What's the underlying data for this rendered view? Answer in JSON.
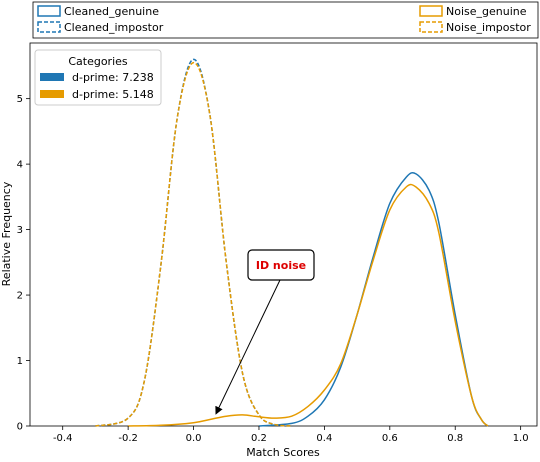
{
  "chart_data": {
    "type": "line",
    "xlabel": "Match Scores",
    "ylabel": "Relative Frequency",
    "xlim": [
      -0.5,
      1.05
    ],
    "ylim": [
      0,
      5.85
    ],
    "xticks": [
      "-0.4",
      "-0.2",
      "0.0",
      "0.2",
      "0.4",
      "0.6",
      "0.8",
      "1.0"
    ],
    "xtick_values": [
      -0.4,
      -0.2,
      0.0,
      0.2,
      0.4,
      0.6,
      0.8,
      1.0
    ],
    "yticks": [
      "0",
      "1",
      "2",
      "3",
      "4",
      "5"
    ],
    "ytick_values": [
      0,
      1,
      2,
      3,
      4,
      5
    ],
    "grid": false,
    "top_legend": [
      {
        "name": "Cleaned_genuine",
        "style": "solid"
      },
      {
        "name": "Cleaned_impostor",
        "style": "dashed"
      },
      {
        "name": "Noise_genuine",
        "style": "solid"
      },
      {
        "name": "Noise_impostor",
        "style": "dashed"
      }
    ],
    "category_legend": {
      "title": "Categories",
      "entries": [
        {
          "label": "d-prime: 7.238"
        },
        {
          "label": "d-prime: 5.148"
        }
      ]
    },
    "series": [
      {
        "name": "Cleaned_impostor",
        "style": "dashed",
        "x": [
          -0.3,
          -0.2,
          -0.15,
          -0.1,
          -0.05,
          0.0,
          0.05,
          0.1,
          0.15,
          0.2,
          0.25,
          0.3
        ],
        "y": [
          0.0,
          0.12,
          0.7,
          2.45,
          4.7,
          5.6,
          4.75,
          2.5,
          0.8,
          0.17,
          0.02,
          0.0
        ]
      },
      {
        "name": "Cleaned_genuine",
        "style": "solid",
        "x": [
          0.2,
          0.3,
          0.35,
          0.4,
          0.45,
          0.5,
          0.55,
          0.6,
          0.65,
          0.68,
          0.72,
          0.75,
          0.8,
          0.85,
          0.88,
          0.9
        ],
        "y": [
          0.0,
          0.04,
          0.15,
          0.4,
          0.9,
          1.7,
          2.6,
          3.4,
          3.8,
          3.85,
          3.6,
          3.1,
          1.7,
          0.45,
          0.1,
          0.0
        ]
      },
      {
        "name": "Noise_impostor",
        "style": "dashed",
        "x": [
          -0.3,
          -0.2,
          -0.15,
          -0.1,
          -0.05,
          0.0,
          0.05,
          0.1,
          0.15,
          0.2,
          0.25,
          0.3
        ],
        "y": [
          0.0,
          0.12,
          0.7,
          2.45,
          4.7,
          5.55,
          4.75,
          2.5,
          0.8,
          0.17,
          0.02,
          0.0
        ]
      },
      {
        "name": "Noise_genuine",
        "style": "solid",
        "x": [
          -0.2,
          -0.1,
          0.0,
          0.05,
          0.1,
          0.15,
          0.2,
          0.25,
          0.3,
          0.35,
          0.4,
          0.45,
          0.5,
          0.55,
          0.6,
          0.65,
          0.68,
          0.72,
          0.75,
          0.8,
          0.85,
          0.88,
          0.9
        ],
        "y": [
          0.0,
          0.01,
          0.05,
          0.1,
          0.15,
          0.17,
          0.14,
          0.12,
          0.15,
          0.3,
          0.55,
          0.95,
          1.7,
          2.55,
          3.3,
          3.65,
          3.65,
          3.4,
          2.95,
          1.6,
          0.45,
          0.1,
          0.0
        ]
      }
    ],
    "annotation": {
      "text": "ID noise",
      "target_x": 0.07,
      "target_y": 0.2,
      "color": "#dd0000"
    }
  },
  "colors": {
    "cleaned": "#1f77b4",
    "noise": "#e69b00",
    "annotation_text": "#dd0000",
    "axis": "#000000"
  }
}
